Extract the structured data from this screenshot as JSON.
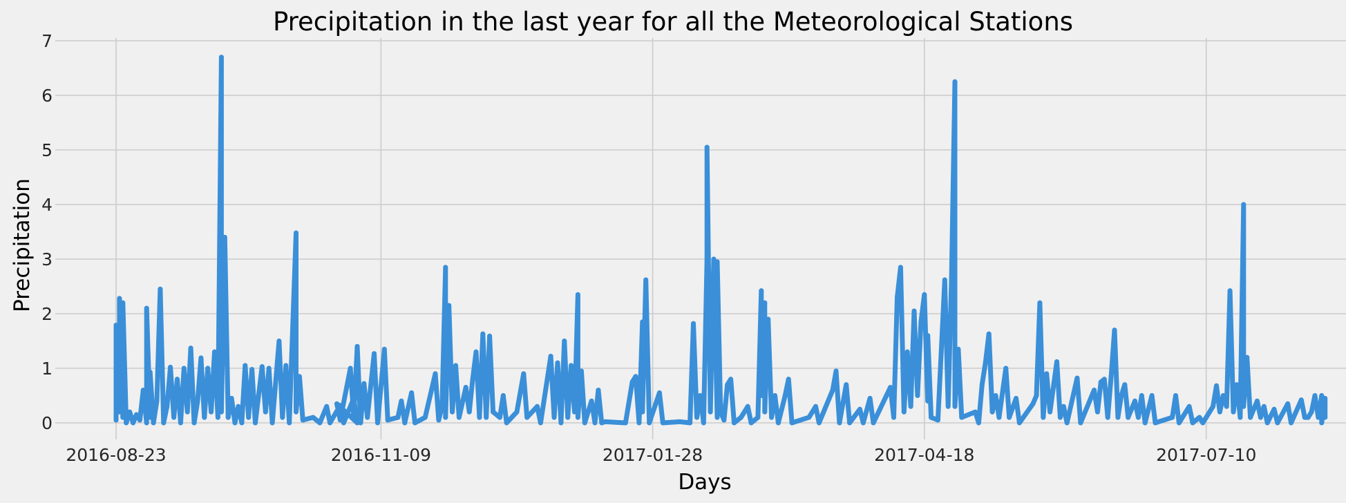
{
  "chart_data": {
    "type": "line",
    "title": "Precipitation in the last year for all the Meteorological Stations",
    "xlabel": "Days",
    "ylabel": "Precipitation",
    "x_range": [
      "2016-08-23",
      "2017-08-23"
    ],
    "ylim": [
      -0.3,
      7.0
    ],
    "y_ticks": [
      0,
      1,
      2,
      3,
      4,
      5,
      6,
      7
    ],
    "x_ticks": [
      "2016-08-23",
      "2016-11-09",
      "2017-01-28",
      "2017-04-18",
      "2017-07-10"
    ],
    "grid": true,
    "legend": "none",
    "color": "#3a8fd8",
    "series": [
      {
        "values": [
          [
            "2016-08-23",
            0.05
          ],
          [
            "2016-08-23",
            1.79
          ],
          [
            "2016-08-24",
            0.2
          ],
          [
            "2016-08-24",
            2.28
          ],
          [
            "2016-08-25",
            0.1
          ],
          [
            "2016-08-25",
            2.2
          ],
          [
            "2016-08-26",
            0.0
          ],
          [
            "2016-08-27",
            0.2
          ],
          [
            "2016-08-28",
            0.0
          ],
          [
            "2016-08-29",
            0.15
          ],
          [
            "2016-08-30",
            0.05
          ],
          [
            "2016-08-31",
            0.6
          ],
          [
            "2016-09-01",
            0.0
          ],
          [
            "2016-09-01",
            2.1
          ],
          [
            "2016-09-02",
            0.1
          ],
          [
            "2016-09-02",
            0.93
          ],
          [
            "2016-09-03",
            0.0
          ],
          [
            "2016-09-04",
            0.4
          ],
          [
            "2016-09-05",
            2.45
          ],
          [
            "2016-09-06",
            0.0
          ],
          [
            "2016-09-07",
            0.3
          ],
          [
            "2016-09-08",
            1.02
          ],
          [
            "2016-09-09",
            0.1
          ],
          [
            "2016-09-10",
            0.8
          ],
          [
            "2016-09-11",
            0.0
          ],
          [
            "2016-09-12",
            1.0
          ],
          [
            "2016-09-13",
            0.2
          ],
          [
            "2016-09-14",
            1.37
          ],
          [
            "2016-09-15",
            0.0
          ],
          [
            "2016-09-16",
            0.4
          ],
          [
            "2016-09-17",
            1.19
          ],
          [
            "2016-09-18",
            0.1
          ],
          [
            "2016-09-19",
            1.0
          ],
          [
            "2016-09-20",
            0.2
          ],
          [
            "2016-09-21",
            1.3
          ],
          [
            "2016-09-22",
            0.1
          ],
          [
            "2016-09-23",
            6.7
          ],
          [
            "2016-09-23",
            0.2
          ],
          [
            "2016-09-24",
            3.4
          ],
          [
            "2016-09-25",
            0.1
          ],
          [
            "2016-09-26",
            0.45
          ],
          [
            "2016-09-27",
            0.0
          ],
          [
            "2016-09-28",
            0.3
          ],
          [
            "2016-09-29",
            0.0
          ],
          [
            "2016-09-30",
            1.05
          ],
          [
            "2016-10-01",
            0.1
          ],
          [
            "2016-10-02",
            0.98
          ],
          [
            "2016-10-03",
            0.0
          ],
          [
            "2016-10-05",
            1.03
          ],
          [
            "2016-10-06",
            0.2
          ],
          [
            "2016-10-07",
            1.0
          ],
          [
            "2016-10-08",
            0.0
          ],
          [
            "2016-10-10",
            1.5
          ],
          [
            "2016-10-11",
            0.1
          ],
          [
            "2016-10-12",
            1.05
          ],
          [
            "2016-10-13",
            0.0
          ],
          [
            "2016-10-15",
            3.48
          ],
          [
            "2016-10-15",
            0.2
          ],
          [
            "2016-10-16",
            0.85
          ],
          [
            "2016-10-17",
            0.05
          ],
          [
            "2016-10-20",
            0.1
          ],
          [
            "2016-10-22",
            0.0
          ],
          [
            "2016-10-24",
            0.3
          ],
          [
            "2016-10-25",
            0.0
          ],
          [
            "2016-10-28",
            0.32
          ],
          [
            "2016-10-29",
            0.0
          ],
          [
            "2016-11-01",
            0.45
          ],
          [
            "2016-11-02",
            0.0
          ],
          [
            "2016-10-27",
            0.35
          ],
          [
            "2016-10-28",
            0.05
          ],
          [
            "2016-10-31",
            1.0
          ],
          [
            "2016-11-01",
            0.1
          ],
          [
            "2016-11-02",
            1.4
          ],
          [
            "2016-11-03",
            0.0
          ],
          [
            "2016-11-04",
            0.72
          ],
          [
            "2016-11-05",
            0.1
          ],
          [
            "2016-11-07",
            1.27
          ],
          [
            "2016-11-08",
            0.0
          ],
          [
            "2016-11-10",
            1.35
          ],
          [
            "2016-11-11",
            0.05
          ],
          [
            "2016-11-14",
            0.1
          ],
          [
            "2016-11-15",
            0.4
          ],
          [
            "2016-11-16",
            0.0
          ],
          [
            "2016-11-18",
            0.55
          ],
          [
            "2016-11-19",
            0.0
          ],
          [
            "2016-11-22",
            0.1
          ],
          [
            "2016-11-25",
            0.9
          ],
          [
            "2016-11-26",
            0.05
          ],
          [
            "2016-11-27",
            0.3
          ],
          [
            "2016-11-28",
            2.85
          ],
          [
            "2016-11-28",
            0.1
          ],
          [
            "2016-11-29",
            2.15
          ],
          [
            "2016-11-30",
            0.2
          ],
          [
            "2016-12-01",
            1.05
          ],
          [
            "2016-12-02",
            0.1
          ],
          [
            "2016-12-04",
            0.65
          ],
          [
            "2016-12-05",
            0.2
          ],
          [
            "2016-12-06",
            0.8
          ],
          [
            "2016-12-07",
            1.3
          ],
          [
            "2016-12-08",
            0.1
          ],
          [
            "2016-12-09",
            1.63
          ],
          [
            "2016-12-10",
            0.1
          ],
          [
            "2016-12-11",
            1.59
          ],
          [
            "2016-12-12",
            0.2
          ],
          [
            "2016-12-14",
            0.1
          ],
          [
            "2016-12-15",
            0.5
          ],
          [
            "2016-12-16",
            0.0
          ],
          [
            "2016-12-19",
            0.2
          ],
          [
            "2016-12-21",
            0.9
          ],
          [
            "2016-12-22",
            0.1
          ],
          [
            "2016-12-25",
            0.3
          ],
          [
            "2016-12-26",
            0.0
          ],
          [
            "2016-12-29",
            1.22
          ],
          [
            "2016-12-30",
            0.1
          ],
          [
            "2016-12-31",
            1.1
          ],
          [
            "2017-01-01",
            0.0
          ],
          [
            "2017-01-02",
            1.5
          ],
          [
            "2017-01-03",
            0.1
          ],
          [
            "2017-01-04",
            1.05
          ],
          [
            "2017-01-05",
            0.2
          ],
          [
            "2017-01-06",
            2.35
          ],
          [
            "2017-01-06",
            0.1
          ],
          [
            "2017-01-07",
            0.95
          ],
          [
            "2017-01-08",
            0.0
          ],
          [
            "2017-01-10",
            0.4
          ],
          [
            "2017-01-11",
            0.0
          ],
          [
            "2017-01-12",
            0.6
          ],
          [
            "2017-01-13",
            0.0
          ],
          [
            "2017-01-14",
            0.02
          ],
          [
            "2017-01-20",
            0.0
          ],
          [
            "2017-01-22",
            0.75
          ],
          [
            "2017-01-23",
            0.85
          ],
          [
            "2017-01-24",
            0.0
          ],
          [
            "2017-01-25",
            1.85
          ],
          [
            "2017-01-25",
            0.2
          ],
          [
            "2017-01-26",
            2.62
          ],
          [
            "2017-01-27",
            0.0
          ],
          [
            "2017-01-30",
            0.55
          ],
          [
            "2017-01-31",
            0.0
          ],
          [
            "2017-02-05",
            0.02
          ],
          [
            "2017-02-08",
            0.0
          ],
          [
            "2017-02-09",
            1.82
          ],
          [
            "2017-02-10",
            0.1
          ],
          [
            "2017-02-11",
            0.5
          ],
          [
            "2017-02-12",
            0.0
          ],
          [
            "2017-02-13",
            3.0
          ],
          [
            "2017-02-13",
            5.05
          ],
          [
            "2017-02-14",
            0.2
          ],
          [
            "2017-02-15",
            3.0
          ],
          [
            "2017-02-16",
            0.1
          ],
          [
            "2017-02-16",
            2.95
          ],
          [
            "2017-02-17",
            0.2
          ],
          [
            "2017-02-18",
            0.05
          ],
          [
            "2017-02-19",
            0.7
          ],
          [
            "2017-02-20",
            0.8
          ],
          [
            "2017-02-21",
            0.0
          ],
          [
            "2017-02-23",
            0.1
          ],
          [
            "2017-02-25",
            0.3
          ],
          [
            "2017-02-26",
            0.0
          ],
          [
            "2017-02-28",
            0.1
          ],
          [
            "2017-03-01",
            2.42
          ],
          [
            "2017-03-01",
            0.5
          ],
          [
            "2017-03-02",
            2.2
          ],
          [
            "2017-03-02",
            0.2
          ],
          [
            "2017-03-03",
            1.9
          ],
          [
            "2017-03-04",
            0.1
          ],
          [
            "2017-03-05",
            0.5
          ],
          [
            "2017-03-06",
            0.0
          ],
          [
            "2017-03-08",
            0.5
          ],
          [
            "2017-03-09",
            0.8
          ],
          [
            "2017-03-10",
            0.0
          ],
          [
            "2017-03-15",
            0.1
          ],
          [
            "2017-03-17",
            0.3
          ],
          [
            "2017-03-18",
            0.0
          ],
          [
            "2017-03-22",
            0.6
          ],
          [
            "2017-03-23",
            0.95
          ],
          [
            "2017-03-24",
            0.0
          ],
          [
            "2017-03-26",
            0.7
          ],
          [
            "2017-03-27",
            0.0
          ],
          [
            "2017-03-30",
            0.25
          ],
          [
            "2017-03-31",
            0.0
          ],
          [
            "2017-04-02",
            0.45
          ],
          [
            "2017-04-03",
            0.0
          ],
          [
            "2017-04-08",
            0.65
          ],
          [
            "2017-04-09",
            0.1
          ],
          [
            "2017-04-10",
            2.3
          ],
          [
            "2017-04-11",
            2.85
          ],
          [
            "2017-04-12",
            0.2
          ],
          [
            "2017-04-13",
            1.3
          ],
          [
            "2017-04-14",
            0.3
          ],
          [
            "2017-04-15",
            2.05
          ],
          [
            "2017-04-16",
            0.5
          ],
          [
            "2017-04-17",
            1.85
          ],
          [
            "2017-04-18",
            2.35
          ],
          [
            "2017-04-19",
            0.4
          ],
          [
            "2017-04-19",
            1.6
          ],
          [
            "2017-04-20",
            0.1
          ],
          [
            "2017-04-22",
            0.05
          ],
          [
            "2017-04-24",
            2.62
          ],
          [
            "2017-04-25",
            0.3
          ],
          [
            "2017-04-26",
            2.65
          ],
          [
            "2017-04-27",
            6.25
          ],
          [
            "2017-04-27",
            0.3
          ],
          [
            "2017-04-28",
            1.35
          ],
          [
            "2017-04-29",
            0.1
          ],
          [
            "2017-05-03",
            0.2
          ],
          [
            "2017-05-04",
            0.0
          ],
          [
            "2017-05-05",
            0.7
          ],
          [
            "2017-05-06",
            1.1
          ],
          [
            "2017-05-07",
            1.63
          ],
          [
            "2017-05-08",
            0.2
          ],
          [
            "2017-05-09",
            0.5
          ],
          [
            "2017-05-10",
            0.1
          ],
          [
            "2017-05-12",
            1.0
          ],
          [
            "2017-05-13",
            0.1
          ],
          [
            "2017-05-15",
            0.45
          ],
          [
            "2017-05-16",
            0.0
          ],
          [
            "2017-05-20",
            0.35
          ],
          [
            "2017-05-21",
            0.5
          ],
          [
            "2017-05-22",
            2.2
          ],
          [
            "2017-05-23",
            0.1
          ],
          [
            "2017-05-24",
            0.9
          ],
          [
            "2017-05-25",
            0.2
          ],
          [
            "2017-05-27",
            1.12
          ],
          [
            "2017-05-28",
            0.1
          ],
          [
            "2017-05-29",
            0.3
          ],
          [
            "2017-05-30",
            0.0
          ],
          [
            "2017-06-02",
            0.82
          ],
          [
            "2017-06-03",
            0.0
          ],
          [
            "2017-06-07",
            0.6
          ],
          [
            "2017-06-08",
            0.2
          ],
          [
            "2017-06-09",
            0.75
          ],
          [
            "2017-06-10",
            0.8
          ],
          [
            "2017-06-11",
            0.1
          ],
          [
            "2017-06-12",
            0.85
          ],
          [
            "2017-06-13",
            1.7
          ],
          [
            "2017-06-14",
            0.1
          ],
          [
            "2017-06-15",
            0.5
          ],
          [
            "2017-06-16",
            0.7
          ],
          [
            "2017-06-17",
            0.1
          ],
          [
            "2017-06-19",
            0.4
          ],
          [
            "2017-06-20",
            0.1
          ],
          [
            "2017-06-21",
            0.5
          ],
          [
            "2017-06-22",
            0.0
          ],
          [
            "2017-06-24",
            0.5
          ],
          [
            "2017-06-25",
            0.0
          ],
          [
            "2017-06-30",
            0.1
          ],
          [
            "2017-07-01",
            0.5
          ],
          [
            "2017-07-02",
            0.0
          ],
          [
            "2017-07-05",
            0.3
          ],
          [
            "2017-07-06",
            0.0
          ],
          [
            "2017-07-08",
            0.1
          ],
          [
            "2017-07-09",
            0.0
          ],
          [
            "2017-07-12",
            0.3
          ],
          [
            "2017-07-13",
            0.68
          ],
          [
            "2017-07-14",
            0.2
          ],
          [
            "2017-07-15",
            0.5
          ],
          [
            "2017-07-16",
            0.3
          ],
          [
            "2017-07-17",
            2.42
          ],
          [
            "2017-07-18",
            0.2
          ],
          [
            "2017-07-19",
            0.7
          ],
          [
            "2017-07-20",
            0.1
          ],
          [
            "2017-07-21",
            4.0
          ],
          [
            "2017-07-21",
            0.3
          ],
          [
            "2017-07-22",
            1.2
          ],
          [
            "2017-07-23",
            0.1
          ],
          [
            "2017-07-25",
            0.4
          ],
          [
            "2017-07-26",
            0.1
          ],
          [
            "2017-07-27",
            0.3
          ],
          [
            "2017-07-28",
            0.0
          ],
          [
            "2017-07-30",
            0.25
          ],
          [
            "2017-07-31",
            0.0
          ],
          [
            "2017-08-03",
            0.35
          ],
          [
            "2017-08-04",
            0.0
          ],
          [
            "2017-08-07",
            0.42
          ],
          [
            "2017-08-08",
            0.1
          ],
          [
            "2017-08-09",
            0.1
          ],
          [
            "2017-08-10",
            0.2
          ],
          [
            "2017-08-11",
            0.5
          ],
          [
            "2017-08-12",
            0.1
          ],
          [
            "2017-08-13",
            0.5
          ],
          [
            "2017-08-13",
            0.0
          ],
          [
            "2017-08-14",
            0.45
          ],
          [
            "2017-08-14",
            0.1
          ]
        ]
      }
    ]
  }
}
